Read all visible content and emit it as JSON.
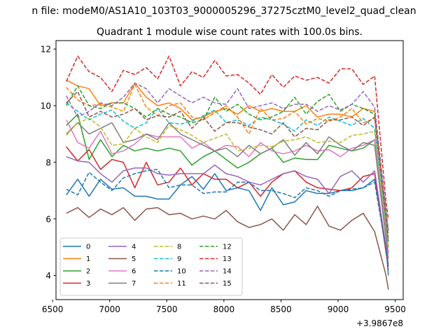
{
  "figure": {
    "suptitle": "n file: modeM0/AS1A10_103T03_9000005296_37275cztM0_level2_quad_clean",
    "title": "Quadrant 1 module wise count rates with 100.0s bins."
  },
  "chart_data": {
    "type": "line",
    "title": "Quadrant 1 module wise count rates with 100.0s bins.",
    "xlabel": "",
    "ylabel": "",
    "x_offset_label": "+3.9867e8",
    "xlim": [
      6530,
      9570
    ],
    "ylim": [
      3.15,
      12.3
    ],
    "xticks": [
      6500,
      7000,
      7500,
      8000,
      8500,
      9000,
      9500
    ],
    "yticks": [
      4,
      6,
      8,
      10,
      12
    ],
    "grid": false,
    "legend": {
      "placement": "lower-left",
      "columns": 4
    },
    "x": [
      6620,
      6720,
      6820,
      6920,
      7020,
      7120,
      7220,
      7320,
      7420,
      7520,
      7620,
      7720,
      7820,
      7920,
      8020,
      8120,
      8220,
      8320,
      8420,
      8520,
      8620,
      8720,
      8820,
      8920,
      9020,
      9120,
      9220,
      9320,
      9420,
      9440
    ],
    "series": [
      {
        "name": "0",
        "color": "#1f77b4",
        "dash": "solid",
        "values": [
          6.85,
          7.4,
          6.8,
          7.4,
          7.05,
          7.1,
          6.8,
          6.8,
          6.7,
          6.7,
          7.2,
          7.5,
          7.05,
          7.6,
          7.0,
          7.1,
          7.0,
          6.3,
          7.1,
          6.5,
          6.6,
          7.0,
          6.9,
          6.9,
          7.0,
          7.0,
          7.1,
          7.4,
          5.0,
          4.0
        ]
      },
      {
        "name": "1",
        "color": "#ff7f0e",
        "dash": "solid",
        "values": [
          10.9,
          10.7,
          10.6,
          10.0,
          10.1,
          10.1,
          10.8,
          10.3,
          10.0,
          10.1,
          9.9,
          9.5,
          9.6,
          9.8,
          9.9,
          9.7,
          10.0,
          9.8,
          9.9,
          9.8,
          9.8,
          10.0,
          9.6,
          9.7,
          9.7,
          9.6,
          9.9,
          9.8,
          6.0,
          5.6
        ]
      },
      {
        "name": "2",
        "color": "#2ca02c",
        "dash": "solid",
        "values": [
          9.3,
          9.7,
          8.1,
          8.8,
          8.2,
          8.6,
          8.4,
          8.5,
          8.4,
          8.5,
          8.4,
          7.9,
          8.2,
          8.4,
          8.1,
          7.8,
          8.0,
          8.3,
          8.5,
          8.0,
          8.15,
          8.1,
          8.1,
          8.6,
          8.5,
          8.4,
          8.5,
          8.8,
          5.6,
          5.0
        ]
      },
      {
        "name": "3",
        "color": "#d62728",
        "dash": "solid",
        "values": [
          8.55,
          8.05,
          8.45,
          7.75,
          8.1,
          8.0,
          7.1,
          8.0,
          7.2,
          7.3,
          7.8,
          7.2,
          7.6,
          7.4,
          7.4,
          7.1,
          7.3,
          6.8,
          7.3,
          7.6,
          7.7,
          7.3,
          7.1,
          7.05,
          7.0,
          7.1,
          7.5,
          7.6,
          4.8,
          4.3
        ]
      },
      {
        "name": "4",
        "color": "#9467bd",
        "dash": "solid",
        "values": [
          8.2,
          8.05,
          8.0,
          7.6,
          7.3,
          7.7,
          7.8,
          7.8,
          7.6,
          7.55,
          7.6,
          7.6,
          7.6,
          7.9,
          7.6,
          7.5,
          7.3,
          7.2,
          7.4,
          7.6,
          7.7,
          7.5,
          7.4,
          6.9,
          7.5,
          7.7,
          7.3,
          7.7,
          5.0,
          4.4
        ]
      },
      {
        "name": "5",
        "color": "#8c564b",
        "dash": "solid",
        "values": [
          6.2,
          6.4,
          6.05,
          6.35,
          6.15,
          6.4,
          5.95,
          6.35,
          6.4,
          6.15,
          6.2,
          6.0,
          6.1,
          6.0,
          6.3,
          5.9,
          5.7,
          5.8,
          6.0,
          5.6,
          6.15,
          5.8,
          6.45,
          5.75,
          5.6,
          5.95,
          6.2,
          5.55,
          4.0,
          3.5
        ]
      },
      {
        "name": "6",
        "color": "#e377c2",
        "dash": "solid",
        "values": [
          9.5,
          8.7,
          8.5,
          9.1,
          8.3,
          8.4,
          8.65,
          9.0,
          8.9,
          8.9,
          8.9,
          8.5,
          8.7,
          8.4,
          8.6,
          8.55,
          8.2,
          8.7,
          8.4,
          8.3,
          8.4,
          8.6,
          8.4,
          8.45,
          8.2,
          8.5,
          8.6,
          8.8,
          5.5,
          4.8
        ]
      },
      {
        "name": "7",
        "color": "#7f7f7f",
        "dash": "solid",
        "values": [
          9.0,
          9.4,
          9.0,
          9.2,
          9.4,
          8.7,
          8.8,
          9.0,
          8.8,
          9.4,
          9.0,
          8.8,
          8.6,
          8.4,
          8.5,
          8.2,
          8.6,
          8.3,
          8.5,
          8.8,
          8.25,
          8.7,
          8.3,
          8.9,
          8.6,
          8.4,
          8.7,
          8.6,
          5.3,
          4.6
        ]
      },
      {
        "name": "8",
        "color": "#bcbd22",
        "dash": "dashed",
        "values": [
          8.95,
          9.4,
          9.55,
          9.25,
          8.6,
          8.65,
          9.2,
          8.9,
          8.7,
          9.3,
          9.15,
          8.95,
          8.7,
          8.85,
          9.0,
          8.4,
          8.5,
          8.6,
          8.55,
          8.75,
          8.8,
          8.9,
          8.7,
          8.75,
          8.7,
          8.95,
          9.0,
          9.1,
          5.7,
          5.0
        ]
      },
      {
        "name": "9",
        "color": "#17becf",
        "dash": "dashed",
        "values": [
          10.1,
          9.8,
          9.5,
          9.7,
          9.85,
          9.45,
          9.2,
          9.4,
          9.9,
          9.4,
          9.35,
          9.45,
          9.65,
          9.85,
          9.4,
          9.5,
          9.3,
          9.6,
          9.5,
          9.35,
          9.1,
          9.5,
          9.3,
          9.6,
          9.45,
          9.3,
          9.55,
          9.2,
          5.9,
          5.2
        ]
      },
      {
        "name": "10",
        "color": "#1f77b4",
        "dash": "dashed",
        "values": [
          7.05,
          6.85,
          7.65,
          7.3,
          7.0,
          7.45,
          7.6,
          7.7,
          7.75,
          7.1,
          7.2,
          7.2,
          6.9,
          6.95,
          6.95,
          7.3,
          7.3,
          7.0,
          7.0,
          6.9,
          6.75,
          7.1,
          7.0,
          6.8,
          7.0,
          7.05,
          7.1,
          7.3,
          4.9,
          4.2
        ]
      },
      {
        "name": "11",
        "color": "#ff7f0e",
        "dash": "dashed",
        "values": [
          10.65,
          10.2,
          10.0,
          10.05,
          9.95,
          9.8,
          10.75,
          9.95,
          9.65,
          10.0,
          10.1,
          9.6,
          9.5,
          9.75,
          10.0,
          9.6,
          9.0,
          9.9,
          9.5,
          9.55,
          9.8,
          9.35,
          9.55,
          9.45,
          9.6,
          9.9,
          9.4,
          9.55,
          6.1,
          5.6
        ]
      },
      {
        "name": "12",
        "color": "#2ca02c",
        "dash": "dashed",
        "values": [
          10.0,
          10.7,
          10.0,
          9.9,
          10.1,
          10.1,
          9.9,
          9.6,
          9.9,
          9.7,
          9.6,
          9.4,
          9.5,
          10.3,
          9.8,
          10.05,
          9.7,
          9.5,
          9.6,
          9.8,
          10.3,
          9.7,
          10.15,
          10.4,
          9.8,
          10.05,
          9.9,
          9.7,
          6.2,
          5.4
        ]
      },
      {
        "name": "13",
        "color": "#d62728",
        "dash": "dashed",
        "values": [
          10.85,
          11.75,
          11.2,
          11.0,
          10.5,
          11.25,
          11.1,
          11.35,
          10.95,
          11.75,
          10.7,
          11.2,
          11.0,
          11.6,
          11.05,
          11.1,
          10.8,
          10.4,
          11.1,
          10.65,
          11.05,
          10.9,
          11.0,
          10.8,
          11.3,
          11.3,
          10.75,
          11.05,
          6.6,
          6.0
        ]
      },
      {
        "name": "14",
        "color": "#9467bd",
        "dash": "dashed",
        "values": [
          10.35,
          9.6,
          9.8,
          10.1,
          10.0,
          10.3,
          10.8,
          10.6,
          10.1,
          10.6,
          10.35,
          10.1,
          10.3,
          10.1,
          10.05,
          10.6,
          9.9,
          10.0,
          10.1,
          9.9,
          10.05,
          10.05,
          9.8,
          10.0,
          9.85,
          10.05,
          10.5,
          9.95,
          6.3,
          5.6
        ]
      },
      {
        "name": "15",
        "color": "#8c564b",
        "dash": "dashed",
        "values": [
          10.1,
          10.5,
          9.6,
          9.8,
          9.6,
          9.7,
          9.9,
          9.5,
          9.65,
          9.6,
          9.8,
          9.2,
          9.6,
          9.1,
          9.4,
          9.4,
          9.25,
          9.15,
          9.0,
          9.4,
          8.9,
          9.2,
          9.15,
          9.5,
          9.5,
          9.6,
          9.3,
          9.6,
          6.0,
          5.2
        ]
      }
    ]
  }
}
